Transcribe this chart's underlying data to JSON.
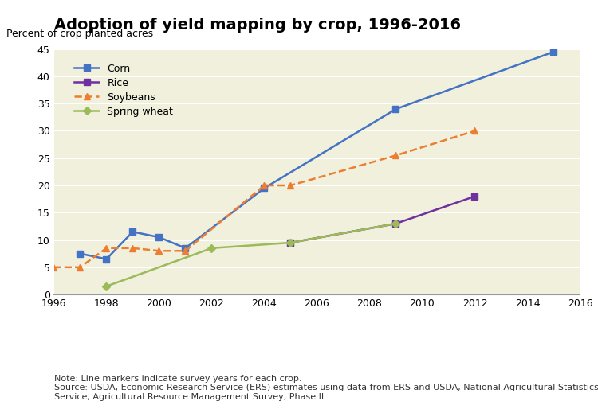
{
  "title": "Adoption of yield mapping by crop, 1996-2016",
  "ylabel": "Percent of crop planted acres",
  "background_color": "#f0f0dc",
  "fig_background": "#ffffff",
  "xlim": [
    1996,
    2016
  ],
  "ylim": [
    0,
    45
  ],
  "yticks": [
    0,
    5,
    10,
    15,
    20,
    25,
    30,
    35,
    40,
    45
  ],
  "xticks": [
    1996,
    1998,
    2000,
    2002,
    2004,
    2006,
    2008,
    2010,
    2012,
    2014,
    2016
  ],
  "series": {
    "Corn": {
      "x": [
        1997,
        1998,
        1999,
        2000,
        2001,
        2004,
        2009,
        2015
      ],
      "y": [
        7.5,
        6.5,
        11.5,
        10.5,
        8.5,
        19.5,
        34.0,
        44.5
      ],
      "color": "#4472c4",
      "linestyle": "-",
      "marker": "s",
      "markersize": 6,
      "linewidth": 1.8,
      "zorder": 3
    },
    "Rice": {
      "x": [
        2005,
        2009,
        2012
      ],
      "y": [
        9.5,
        13.0,
        18.0
      ],
      "color": "#7030a0",
      "linestyle": "-",
      "marker": "s",
      "markersize": 6,
      "linewidth": 1.8,
      "zorder": 3
    },
    "Soybeans": {
      "x": [
        1996,
        1997,
        1998,
        1999,
        2000,
        2001,
        2004,
        2005,
        2009,
        2012
      ],
      "y": [
        5.0,
        5.0,
        8.5,
        8.5,
        8.0,
        8.0,
        20.0,
        20.0,
        25.5,
        30.0
      ],
      "color": "#ed7d31",
      "linestyle": "--",
      "marker": "^",
      "markersize": 6,
      "linewidth": 1.8,
      "zorder": 3
    },
    "Spring wheat": {
      "x": [
        1998,
        2002,
        2005,
        2009
      ],
      "y": [
        1.5,
        8.5,
        9.5,
        13.0
      ],
      "color": "#9bbb59",
      "linestyle": "-",
      "marker": "D",
      "markersize": 5,
      "linewidth": 1.8,
      "zorder": 3
    }
  },
  "note_text": "Note: Line markers indicate survey years for each crop.\nSource: USDA, Economic Research Service (ERS) estimates using data from ERS and USDA, National Agricultural Statistics\nService, Agricultural Resource Management Survey, Phase II.",
  "title_fontsize": 14,
  "label_fontsize": 9,
  "tick_fontsize": 9,
  "legend_fontsize": 9,
  "note_fontsize": 8
}
